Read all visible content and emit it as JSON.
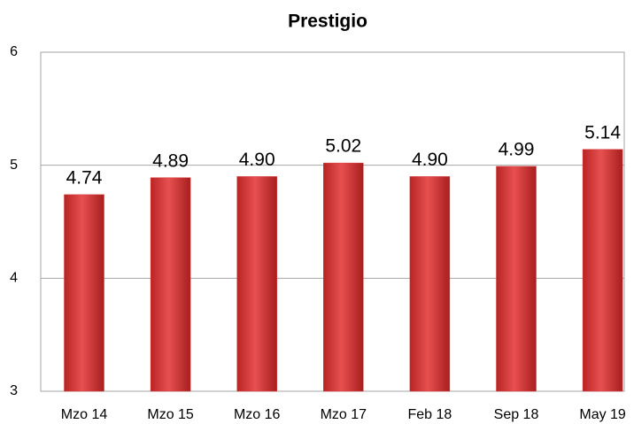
{
  "chart_data": {
    "type": "bar",
    "title": "Prestigio",
    "categories": [
      "Mzo 14",
      "Mzo 15",
      "Mzo 16",
      "Mzo 17",
      "Feb 18",
      "Sep 18",
      "May 19"
    ],
    "values": [
      4.74,
      4.89,
      4.9,
      5.02,
      4.9,
      4.99,
      5.14
    ],
    "value_labels": [
      "4.74",
      "4.89",
      "4.90",
      "5.02",
      "4.90",
      "4.99",
      "5.14"
    ],
    "color": "#d63a3a",
    "ylim": [
      3,
      6
    ],
    "yticks": [
      3,
      4,
      5,
      6
    ],
    "grid": true
  }
}
